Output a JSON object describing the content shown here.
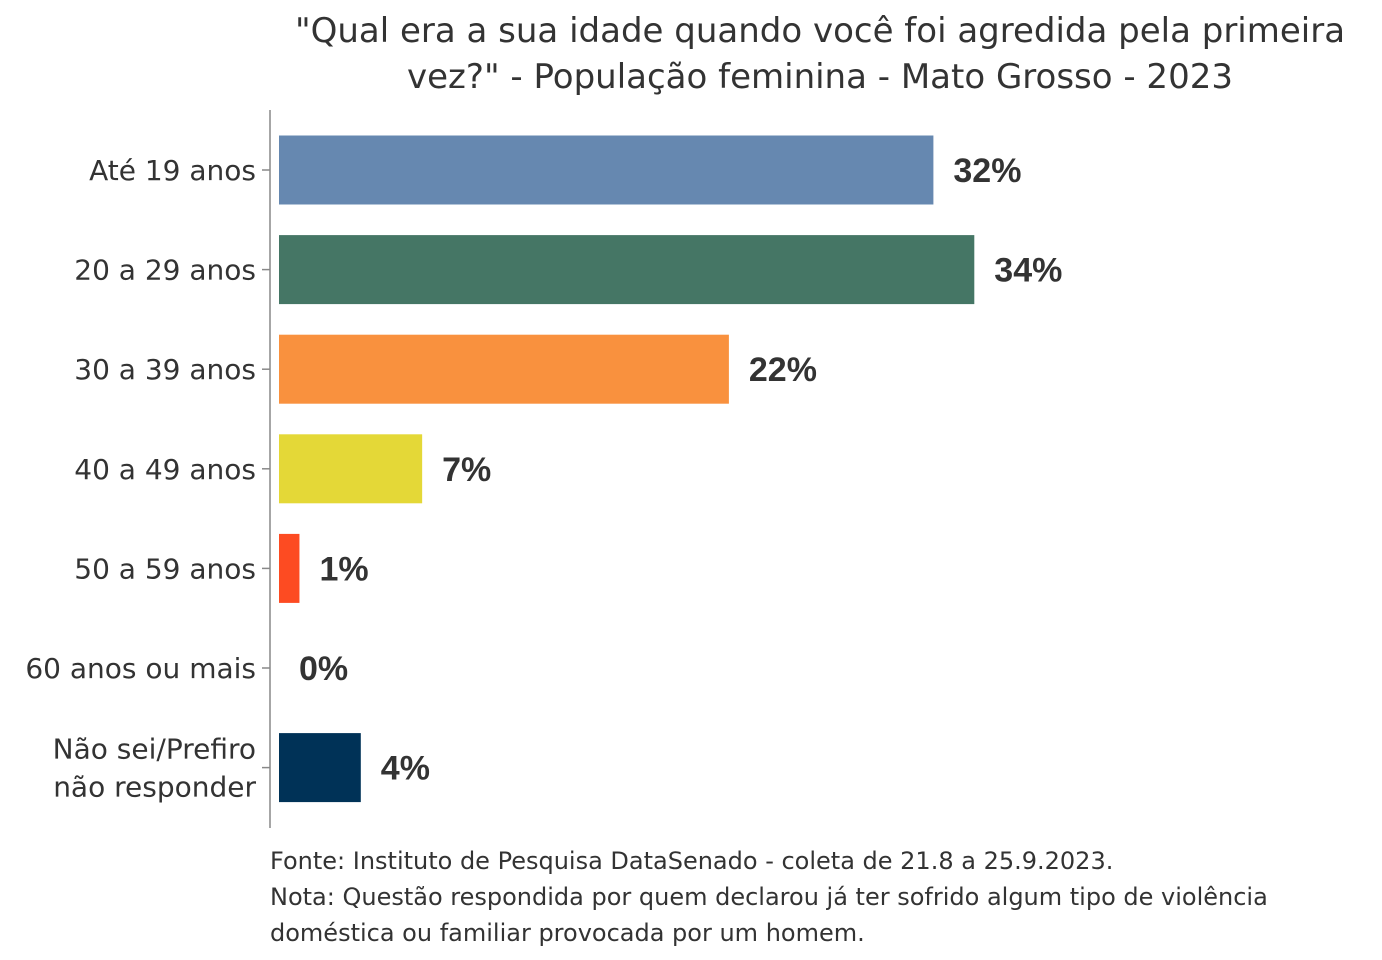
{
  "chart_data": {
    "type": "bar",
    "orientation": "horizontal",
    "title": "\"Qual era a sua idade quando você foi agredida pela primeira vez?\" - População feminina - Mato Grosso - 2023",
    "title_lines": [
      "\"Qual era a sua idade quando você foi agredida pela primeira",
      "vez?\" - População feminina - Mato Grosso - 2023"
    ],
    "categories": [
      "Até 19 anos",
      "20 a 29 anos",
      "30 a 39 anos",
      "40 a 49 anos",
      "50 a 59 anos",
      "60 anos ou mais",
      "Não sei/Prefiro não responder"
    ],
    "category_lines": [
      [
        "Até 19 anos"
      ],
      [
        "20 a 29 anos"
      ],
      [
        "30 a 39 anos"
      ],
      [
        "40 a 49 anos"
      ],
      [
        "50 a 59 anos"
      ],
      [
        "60 anos ou mais"
      ],
      [
        "Não sei/Prefiro",
        "não responder"
      ]
    ],
    "values": [
      32,
      34,
      22,
      7,
      1,
      0,
      4
    ],
    "value_labels": [
      "32%",
      "34%",
      "22%",
      "7%",
      "1%",
      "0%",
      "4%"
    ],
    "colors": [
      "#6688b0",
      "#457665",
      "#f9913e",
      "#e4d837",
      "#fd4b22",
      "#c0c0c0",
      "#003257"
    ],
    "xlim": [
      0,
      50
    ],
    "grid": false,
    "legend": "none"
  },
  "footer": {
    "source": "Fonte: Instituto de Pesquisa DataSenado - coleta de 21.8 a 25.9.2023.",
    "note_lines": [
      "Nota: Questão respondida por quem declarou já ter sofrido algum tipo de violência",
      "doméstica ou familiar provocada por um homem."
    ]
  }
}
